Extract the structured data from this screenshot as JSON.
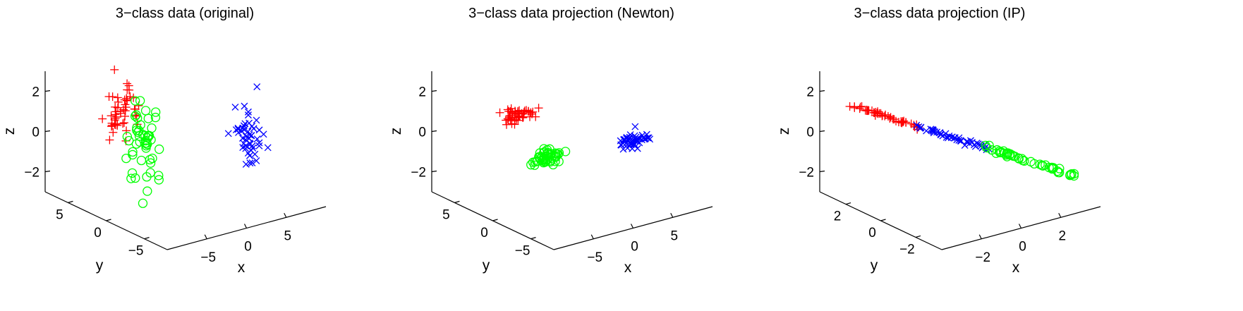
{
  "chart_data": [
    {
      "type": "scatter",
      "projection": "3d",
      "title": "3−class data (original)",
      "xlabel": "x",
      "ylabel": "y",
      "zlabel": "z",
      "xlim": [
        -10,
        10
      ],
      "ylim": [
        -8,
        8
      ],
      "zlim": [
        -3,
        3
      ],
      "xticks": [
        -5,
        0,
        5
      ],
      "xtick_labels": [
        "−5",
        "0",
        "5"
      ],
      "yticks": [
        -5,
        0,
        5
      ],
      "ytick_labels": [
        "−5",
        "0",
        "5"
      ],
      "zticks": [
        -2,
        0,
        2
      ],
      "ztick_labels": [
        "−2",
        "0",
        "2"
      ],
      "grid": false,
      "series": [
        {
          "color": "#ff0000",
          "marker": "plus",
          "count": 50,
          "center": [
            -4,
            4,
            1.0
          ],
          "spread": [
            0.8,
            0.8,
            0.8
          ]
        },
        {
          "color": "#00ff00",
          "marker": "circle",
          "count": 50,
          "center": [
            -2,
            3.5,
            -0.7
          ],
          "spread": [
            0.8,
            0.8,
            1.1
          ]
        },
        {
          "color": "#0000ff",
          "marker": "x",
          "count": 50,
          "center": [
            5,
            -3,
            0.1
          ],
          "spread": [
            0.7,
            0.7,
            0.8
          ]
        }
      ]
    },
    {
      "type": "scatter",
      "projection": "3d",
      "title": "3−class data projection (Newton)",
      "xlabel": "x",
      "ylabel": "y",
      "zlabel": "z",
      "xlim": [
        -10,
        10
      ],
      "ylim": [
        -8,
        8
      ],
      "zlim": [
        -3,
        3
      ],
      "xticks": [
        -5,
        0,
        5
      ],
      "xtick_labels": [
        "−5",
        "0",
        "5"
      ],
      "yticks": [
        -5,
        0,
        5
      ],
      "ytick_labels": [
        "−5",
        "0",
        "5"
      ],
      "zticks": [
        -2,
        0,
        2
      ],
      "ztick_labels": [
        "−2",
        "0",
        "2"
      ],
      "grid": false,
      "series": [
        {
          "color": "#ff0000",
          "marker": "plus",
          "count": 50,
          "center": [
            -3.5,
            3.5,
            0.9
          ],
          "spread": [
            1.1,
            0.3,
            0.15
          ]
        },
        {
          "color": "#00ff00",
          "marker": "circle",
          "count": 50,
          "center": [
            -1,
            2,
            -1.1
          ],
          "spread": [
            1.1,
            0.3,
            0.15
          ]
        },
        {
          "color": "#0000ff",
          "marker": "x",
          "count": 50,
          "center": [
            4.5,
            -3.5,
            0.1
          ],
          "spread": [
            0.9,
            0.3,
            0.15
          ]
        }
      ]
    },
    {
      "type": "scatter",
      "projection": "3d",
      "title": "3−class data projection (IP)",
      "xlabel": "x",
      "ylabel": "y",
      "zlabel": "z",
      "xlim": [
        -4,
        4
      ],
      "ylim": [
        -3.5,
        3.5
      ],
      "zlim": [
        -3,
        3
      ],
      "xticks": [
        -2,
        0,
        2
      ],
      "xtick_labels": [
        "−2",
        "0",
        "2"
      ],
      "yticks": [
        -2,
        0,
        2
      ],
      "ytick_labels": [
        "−2",
        "0",
        "2"
      ],
      "zticks": [
        -2,
        0,
        2
      ],
      "ztick_labels": [
        "−2",
        "0",
        "2"
      ],
      "grid": false,
      "series": [
        {
          "color": "#ff0000",
          "marker": "plus",
          "count": 50,
          "line_t": [
            0.0,
            0.32
          ]
        },
        {
          "color": "#0000ff",
          "marker": "x",
          "count": 50,
          "line_t": [
            0.3,
            0.62
          ]
        },
        {
          "color": "#00ff00",
          "marker": "circle",
          "count": 50,
          "line_t": [
            0.6,
            1.0
          ]
        }
      ]
    }
  ]
}
